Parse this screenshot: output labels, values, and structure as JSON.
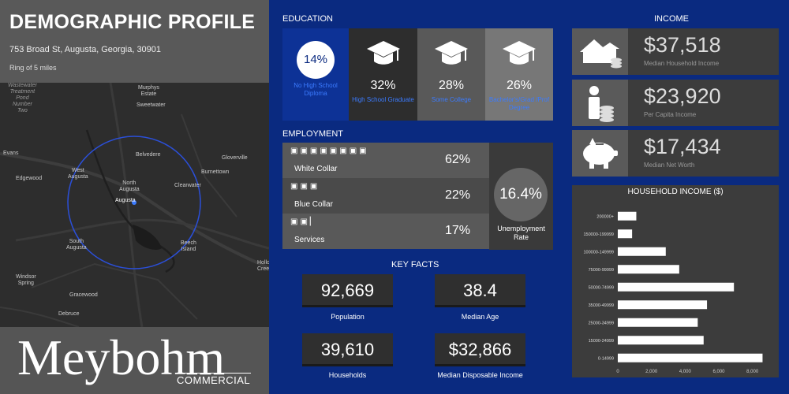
{
  "header": {
    "title": "DEMOGRAPHIC PROFILE",
    "address": "753 Broad St, Augusta, Georgia, 30901",
    "ring": "Ring of 5 miles"
  },
  "map": {
    "labels": {
      "treatment": "Wastewater\nTreatment\nPond\nNumber\nTwo",
      "murphys": "Murphys\nEstate",
      "sweetwater": "Sweetwater",
      "evans": "Evans",
      "belvedere": "Belvedere",
      "gloverville": "Gloverville",
      "edgewood": "Edgewood",
      "west_augusta": "West\nAugusta",
      "burnettown": "Burnettown",
      "north_augusta": "North\nAugusta",
      "clearwater": "Clearwater",
      "augusta": "Augusta",
      "south_augusta": "South\nAugusta",
      "beech_island": "Beech\nIsland",
      "holloway": "Hollo\nCree",
      "windsor_spring": "Windsor\nSpring",
      "gracewood": "Gracewood",
      "debruce": "Debruce"
    }
  },
  "logo": {
    "main": "Meybohm",
    "sub": "COMMERCIAL"
  },
  "education": {
    "heading": "EDUCATION",
    "items": [
      {
        "pct": "14%",
        "label": "No High School Diploma"
      },
      {
        "pct": "32%",
        "label": "High School Graduate"
      },
      {
        "pct": "28%",
        "label": "Some College"
      },
      {
        "pct": "26%",
        "label": "Bachelor's/Grad /Prof Degree"
      }
    ]
  },
  "employment": {
    "heading": "EMPLOYMENT",
    "rows": [
      {
        "label": "White Collar",
        "pct": "62%",
        "icons": "▣▣▣▣▣▣▣▣"
      },
      {
        "label": "Blue Collar",
        "pct": "22%",
        "icons": "▣▣▣"
      },
      {
        "label": "Services",
        "pct": "17%",
        "icons": "▣▣▏"
      }
    ],
    "unemployment_value": "16.4%",
    "unemployment_label": "Unemployment Rate"
  },
  "key_facts": {
    "heading": "KEY FACTS",
    "items": [
      {
        "value": "92,669",
        "label": "Population"
      },
      {
        "value": "38.4",
        "label": "Median Age"
      },
      {
        "value": "39,610",
        "label": "Households"
      },
      {
        "value": "$32,866",
        "label": "Median Disposable Income"
      }
    ]
  },
  "income": {
    "heading": "INCOME",
    "items": [
      {
        "value": "$37,518",
        "label": "Median Household Income",
        "icon": "houses-icon"
      },
      {
        "value": "$23,920",
        "label": "Per Capita Income",
        "icon": "person-coins-icon"
      },
      {
        "value": "$17,434",
        "label": "Median Net Worth",
        "icon": "piggy-bank-icon"
      }
    ]
  },
  "colors": {
    "background": "#0a2a80",
    "accent_blue": "#3b7bff",
    "panel_dark": "#3c3c3c",
    "panel_mid": "#595959"
  },
  "chart_data": {
    "type": "bar",
    "orientation": "horizontal",
    "title": "HOUSEHOLD INCOME ($)",
    "categories": [
      "200000+",
      "150000-199999",
      "100000-149999",
      "75000-99999",
      "50000-74999",
      "35000-49999",
      "25000-34999",
      "15000-24999",
      "0-14999"
    ],
    "values": [
      1100,
      850,
      2850,
      3650,
      6900,
      5300,
      4750,
      5100,
      8600
    ],
    "xlim": [
      0,
      9000
    ],
    "xticks": [
      "0",
      "2,000",
      "4,000",
      "6,000",
      "8,000"
    ],
    "grid": false,
    "legend": "none"
  }
}
